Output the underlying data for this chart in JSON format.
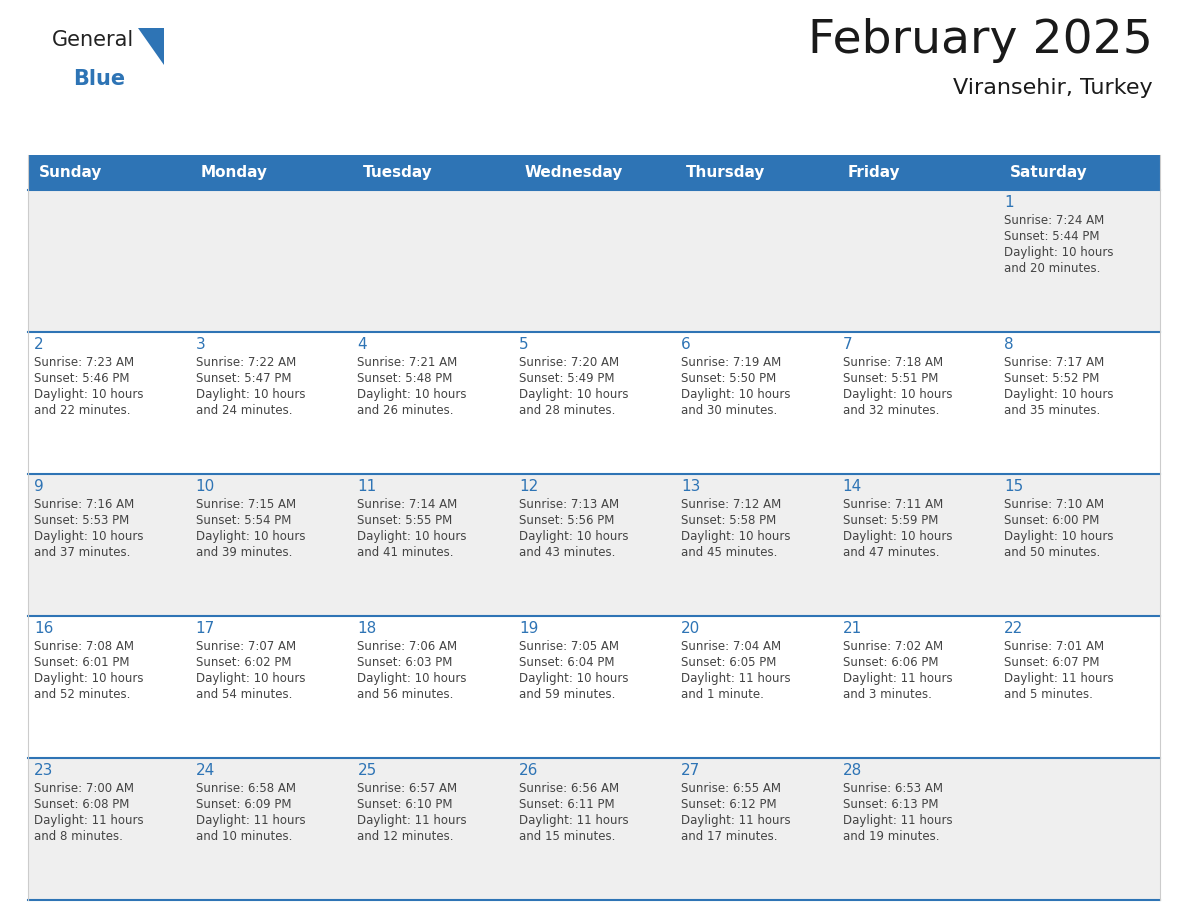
{
  "title": "February 2025",
  "subtitle": "Viransehir, Turkey",
  "days_of_week": [
    "Sunday",
    "Monday",
    "Tuesday",
    "Wednesday",
    "Thursday",
    "Friday",
    "Saturday"
  ],
  "header_bg": "#2E74B5",
  "header_text": "#FFFFFF",
  "row_bg_gray": "#EFEFEF",
  "row_bg_white": "#FFFFFF",
  "row_border_color": "#2E74B5",
  "day_num_color": "#2E74B5",
  "info_color": "#444444",
  "title_color": "#1a1a1a",
  "logo_general_color": "#222222",
  "logo_blue_color": "#2E74B5",
  "calendar_data": [
    [
      null,
      null,
      null,
      null,
      null,
      null,
      {
        "day": 1,
        "sunrise": "7:24 AM",
        "sunset": "5:44 PM",
        "daylight": "10 hours\nand 20 minutes."
      }
    ],
    [
      {
        "day": 2,
        "sunrise": "7:23 AM",
        "sunset": "5:46 PM",
        "daylight": "10 hours\nand 22 minutes."
      },
      {
        "day": 3,
        "sunrise": "7:22 AM",
        "sunset": "5:47 PM",
        "daylight": "10 hours\nand 24 minutes."
      },
      {
        "day": 4,
        "sunrise": "7:21 AM",
        "sunset": "5:48 PM",
        "daylight": "10 hours\nand 26 minutes."
      },
      {
        "day": 5,
        "sunrise": "7:20 AM",
        "sunset": "5:49 PM",
        "daylight": "10 hours\nand 28 minutes."
      },
      {
        "day": 6,
        "sunrise": "7:19 AM",
        "sunset": "5:50 PM",
        "daylight": "10 hours\nand 30 minutes."
      },
      {
        "day": 7,
        "sunrise": "7:18 AM",
        "sunset": "5:51 PM",
        "daylight": "10 hours\nand 32 minutes."
      },
      {
        "day": 8,
        "sunrise": "7:17 AM",
        "sunset": "5:52 PM",
        "daylight": "10 hours\nand 35 minutes."
      }
    ],
    [
      {
        "day": 9,
        "sunrise": "7:16 AM",
        "sunset": "5:53 PM",
        "daylight": "10 hours\nand 37 minutes."
      },
      {
        "day": 10,
        "sunrise": "7:15 AM",
        "sunset": "5:54 PM",
        "daylight": "10 hours\nand 39 minutes."
      },
      {
        "day": 11,
        "sunrise": "7:14 AM",
        "sunset": "5:55 PM",
        "daylight": "10 hours\nand 41 minutes."
      },
      {
        "day": 12,
        "sunrise": "7:13 AM",
        "sunset": "5:56 PM",
        "daylight": "10 hours\nand 43 minutes."
      },
      {
        "day": 13,
        "sunrise": "7:12 AM",
        "sunset": "5:58 PM",
        "daylight": "10 hours\nand 45 minutes."
      },
      {
        "day": 14,
        "sunrise": "7:11 AM",
        "sunset": "5:59 PM",
        "daylight": "10 hours\nand 47 minutes."
      },
      {
        "day": 15,
        "sunrise": "7:10 AM",
        "sunset": "6:00 PM",
        "daylight": "10 hours\nand 50 minutes."
      }
    ],
    [
      {
        "day": 16,
        "sunrise": "7:08 AM",
        "sunset": "6:01 PM",
        "daylight": "10 hours\nand 52 minutes."
      },
      {
        "day": 17,
        "sunrise": "7:07 AM",
        "sunset": "6:02 PM",
        "daylight": "10 hours\nand 54 minutes."
      },
      {
        "day": 18,
        "sunrise": "7:06 AM",
        "sunset": "6:03 PM",
        "daylight": "10 hours\nand 56 minutes."
      },
      {
        "day": 19,
        "sunrise": "7:05 AM",
        "sunset": "6:04 PM",
        "daylight": "10 hours\nand 59 minutes."
      },
      {
        "day": 20,
        "sunrise": "7:04 AM",
        "sunset": "6:05 PM",
        "daylight": "11 hours\nand 1 minute."
      },
      {
        "day": 21,
        "sunrise": "7:02 AM",
        "sunset": "6:06 PM",
        "daylight": "11 hours\nand 3 minutes."
      },
      {
        "day": 22,
        "sunrise": "7:01 AM",
        "sunset": "6:07 PM",
        "daylight": "11 hours\nand 5 minutes."
      }
    ],
    [
      {
        "day": 23,
        "sunrise": "7:00 AM",
        "sunset": "6:08 PM",
        "daylight": "11 hours\nand 8 minutes."
      },
      {
        "day": 24,
        "sunrise": "6:58 AM",
        "sunset": "6:09 PM",
        "daylight": "11 hours\nand 10 minutes."
      },
      {
        "day": 25,
        "sunrise": "6:57 AM",
        "sunset": "6:10 PM",
        "daylight": "11 hours\nand 12 minutes."
      },
      {
        "day": 26,
        "sunrise": "6:56 AM",
        "sunset": "6:11 PM",
        "daylight": "11 hours\nand 15 minutes."
      },
      {
        "day": 27,
        "sunrise": "6:55 AM",
        "sunset": "6:12 PM",
        "daylight": "11 hours\nand 17 minutes."
      },
      {
        "day": 28,
        "sunrise": "6:53 AM",
        "sunset": "6:13 PM",
        "daylight": "11 hours\nand 19 minutes."
      },
      null
    ]
  ],
  "num_rows": 5,
  "num_cols": 7,
  "fig_width": 11.88,
  "fig_height": 9.18,
  "dpi": 100
}
